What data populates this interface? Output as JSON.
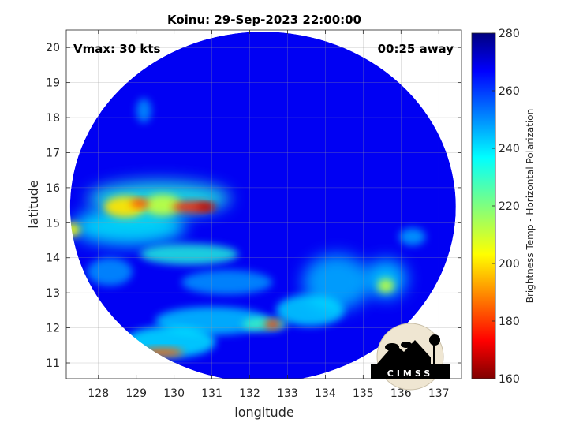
{
  "chart_data": {
    "type": "heatmap",
    "title": "Koinu: 29-Sep-2023 22:00:00",
    "xlabel": "longitude",
    "ylabel": "latitude",
    "xlim": [
      127.15,
      137.6
    ],
    "ylim": [
      10.55,
      20.5
    ],
    "xticks": [
      128,
      129,
      130,
      131,
      132,
      133,
      134,
      135,
      136,
      137
    ],
    "yticks": [
      11,
      12,
      13,
      14,
      15,
      16,
      17,
      18,
      19,
      20
    ],
    "grid": true,
    "annotations": {
      "top_left": "Vmax: 30 kts",
      "top_right": "00:25 away"
    },
    "colorbar": {
      "label": "Brightness Temp - Horizontal Polarization",
      "range": [
        160,
        280
      ],
      "ticks": [
        160,
        180,
        200,
        220,
        240,
        260,
        280
      ],
      "colormap": "jet",
      "position": "right"
    },
    "swath": {
      "center": [
        132.35,
        15.45
      ],
      "radius_lon": 5.1,
      "radius_lat": 5.0
    },
    "background_value": 268,
    "features": [
      {
        "lon": 128.7,
        "lat": 15.45,
        "value": 200,
        "rx": 0.55,
        "ry": 0.3
      },
      {
        "lon": 129.1,
        "lat": 15.55,
        "value": 182,
        "rx": 0.25,
        "ry": 0.12
      },
      {
        "lon": 130.5,
        "lat": 15.45,
        "value": 178,
        "rx": 0.55,
        "ry": 0.15
      },
      {
        "lon": 130.85,
        "lat": 15.45,
        "value": 165,
        "rx": 0.25,
        "ry": 0.1
      },
      {
        "lon": 129.7,
        "lat": 15.5,
        "value": 212,
        "rx": 0.5,
        "ry": 0.3
      },
      {
        "lon": 129.6,
        "lat": 15.7,
        "value": 232,
        "rx": 1.9,
        "ry": 0.5
      },
      {
        "lon": 128.8,
        "lat": 14.9,
        "value": 236,
        "rx": 1.5,
        "ry": 0.55
      },
      {
        "lon": 130.4,
        "lat": 14.1,
        "value": 232,
        "rx": 1.3,
        "ry": 0.3
      },
      {
        "lon": 127.3,
        "lat": 14.8,
        "value": 205,
        "rx": 0.22,
        "ry": 0.2
      },
      {
        "lon": 132.6,
        "lat": 12.1,
        "value": 180,
        "rx": 0.2,
        "ry": 0.12
      },
      {
        "lon": 132.4,
        "lat": 12.1,
        "value": 228,
        "rx": 0.6,
        "ry": 0.2
      },
      {
        "lon": 129.7,
        "lat": 11.3,
        "value": 185,
        "rx": 0.55,
        "ry": 0.12
      },
      {
        "lon": 129.9,
        "lat": 11.6,
        "value": 238,
        "rx": 1.2,
        "ry": 0.45
      },
      {
        "lon": 131.0,
        "lat": 12.2,
        "value": 242,
        "rx": 1.5,
        "ry": 0.4
      },
      {
        "lon": 133.6,
        "lat": 12.5,
        "value": 240,
        "rx": 0.9,
        "ry": 0.45
      },
      {
        "lon": 134.3,
        "lat": 13.3,
        "value": 244,
        "rx": 0.9,
        "ry": 0.8
      },
      {
        "lon": 135.6,
        "lat": 13.2,
        "value": 212,
        "rx": 0.22,
        "ry": 0.2
      },
      {
        "lon": 135.6,
        "lat": 13.4,
        "value": 240,
        "rx": 0.55,
        "ry": 0.55
      },
      {
        "lon": 136.3,
        "lat": 14.6,
        "value": 246,
        "rx": 0.35,
        "ry": 0.25
      },
      {
        "lon": 129.2,
        "lat": 18.2,
        "value": 248,
        "rx": 0.2,
        "ry": 0.35
      },
      {
        "lon": 131.4,
        "lat": 13.3,
        "value": 248,
        "rx": 1.2,
        "ry": 0.35
      },
      {
        "lon": 128.3,
        "lat": 13.6,
        "value": 248,
        "rx": 0.6,
        "ry": 0.4
      }
    ],
    "logo": {
      "text": "CIMSS"
    }
  }
}
